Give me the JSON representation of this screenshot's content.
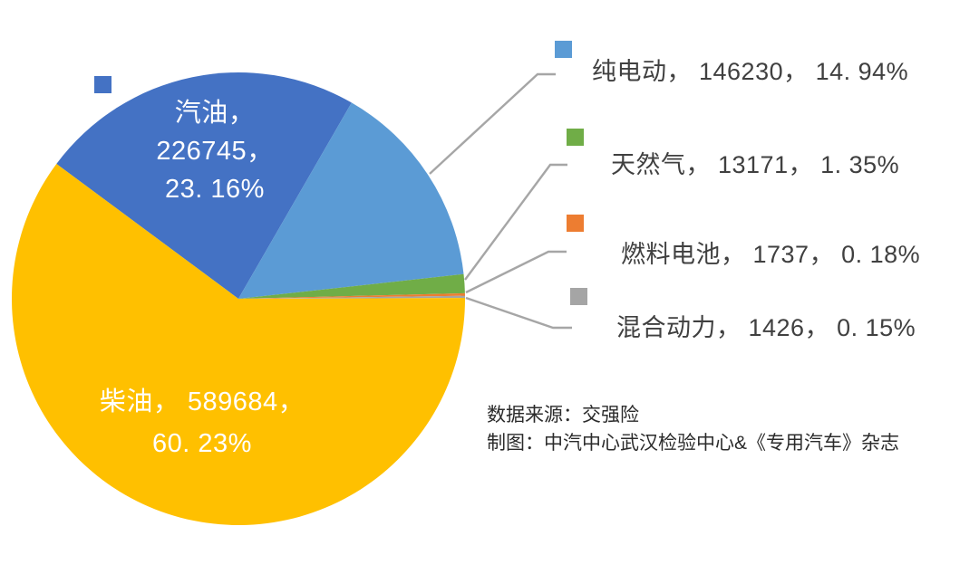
{
  "chart_data": {
    "type": "pie",
    "title": "",
    "categories": [
      "汽油",
      "纯电动",
      "天然气",
      "燃料电池",
      "混合动力",
      "柴油"
    ],
    "values": [
      226745,
      146230,
      13171,
      1737,
      1426,
      589684
    ],
    "percentages": [
      23.16,
      14.94,
      1.35,
      0.18,
      0.15,
      60.23
    ],
    "colors": [
      "#4472C4",
      "#5B9BD5",
      "#70AD47",
      "#ED7D31",
      "#A5A5A5",
      "#FFC000"
    ],
    "start_angle_deg": -53.4,
    "direction": "clockwise",
    "legend_position": "callout-labels-right",
    "grid": false
  },
  "slice_labels": {
    "gasoline": {
      "line1": "汽油，",
      "line2": "226745，",
      "line3": "23. 16%"
    },
    "diesel": {
      "line1": "柴油， 589684，",
      "line2": "60. 23%"
    }
  },
  "callouts": [
    {
      "label": "纯电动",
      "text": "纯电动， 146230， 14. 94%"
    },
    {
      "label": "天然气",
      "text": "天然气， 13171， 1. 35%"
    },
    {
      "label": "燃料电池",
      "text": "燃料电池， 1737， 0. 18%"
    },
    {
      "label": "混合动力",
      "text": "混合动力， 1426， 0. 15%"
    }
  ],
  "source": {
    "line1": "数据来源：交强险",
    "line2": "制图：中汽中心武汉检验中心&《专用汽车》杂志"
  }
}
